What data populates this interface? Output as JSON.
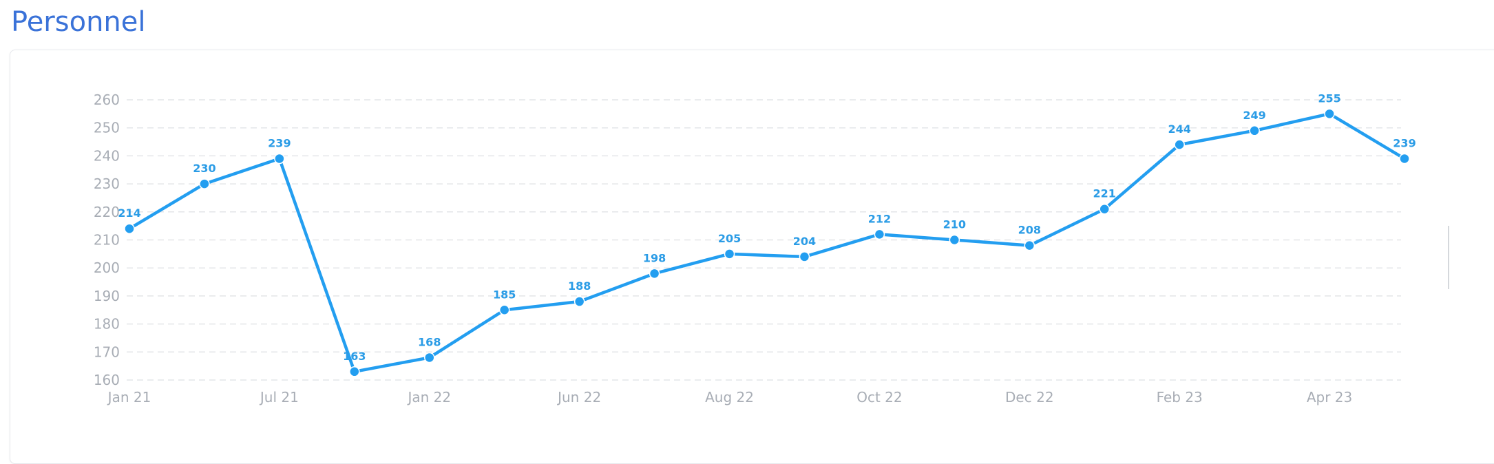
{
  "page": {
    "title": "Personnel"
  },
  "colors": {
    "title": "#3a72d8",
    "series": "#239ef0",
    "label": "#2b9ce6",
    "axis_text": "#a8adb5",
    "grid": "#e3e5e8"
  },
  "chart_data": {
    "type": "line",
    "title": "",
    "xlabel": "",
    "ylabel": "",
    "ylim": [
      160,
      260
    ],
    "y_ticks": [
      "160",
      "170",
      "180",
      "190",
      "200",
      "210",
      "220",
      "230",
      "240",
      "250",
      "260"
    ],
    "x_tick_labels": [
      "Jan 21",
      "Jul 21",
      "Jan 22",
      "Jun 22",
      "Aug 22",
      "Oct 22",
      "Dec 22",
      "Feb 23",
      "Apr 23"
    ],
    "x_tick_positions": [
      0,
      2,
      4,
      6,
      8,
      10,
      12,
      14,
      16
    ],
    "grid": true,
    "legend": "none",
    "series": [
      {
        "values": [
          214,
          230,
          239,
          163,
          168,
          185,
          188,
          198,
          205,
          204,
          212,
          210,
          208,
          221,
          244,
          249,
          255,
          239
        ],
        "point_labels": [
          "214",
          "230",
          "239",
          "163",
          "168",
          "185",
          "188",
          "198",
          "205",
          "204",
          "212",
          "210",
          "208",
          "221",
          "244",
          "249",
          "255",
          "239"
        ]
      }
    ]
  }
}
